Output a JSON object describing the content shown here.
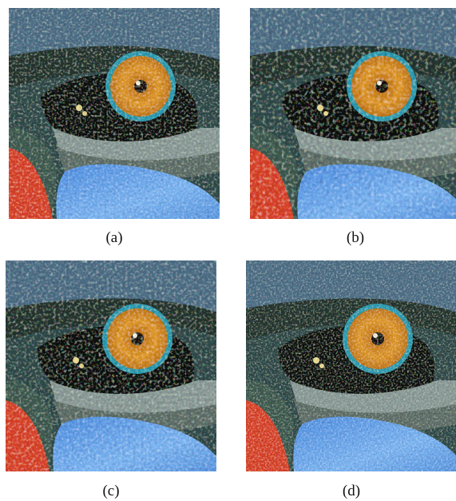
{
  "panels": [
    {
      "caption": "(a)"
    },
    {
      "caption": "(b)"
    },
    {
      "caption": "(c)"
    },
    {
      "caption": "(d)"
    }
  ],
  "colors": {
    "fur_top": "#3c5a6a",
    "fur_dark": "#1f2c28",
    "iris": "#d88a1a",
    "iris_ring": "#2a9bb0",
    "sclera_dark": "#0c120e",
    "under_eye_gray": "#8a9a96",
    "blue_patch": "#5a9ee8",
    "red_cheek": "#d84228"
  }
}
